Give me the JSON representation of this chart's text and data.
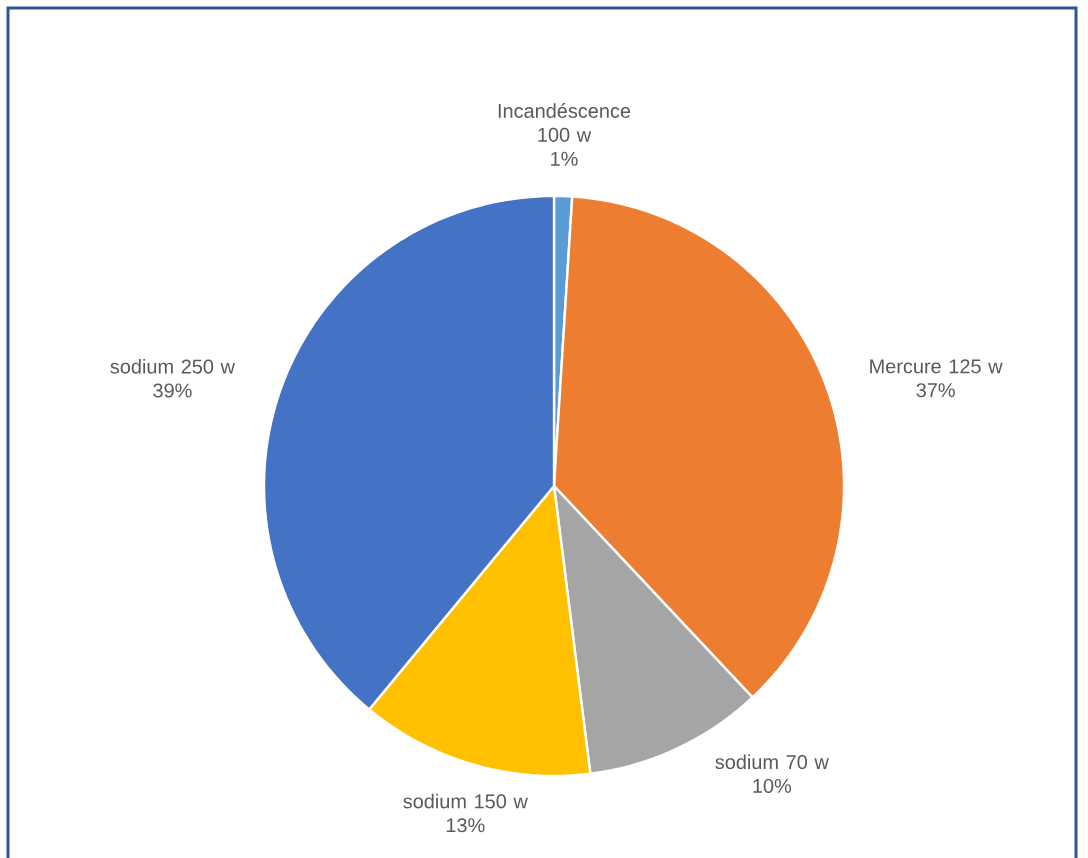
{
  "chart_data": {
    "type": "pie",
    "categories": [
      "Incandéscence 100 w",
      "Mercure 125 w",
      "sodium 70 w",
      "sodium 150 w",
      "sodium 250 w"
    ],
    "values": [
      1,
      37,
      10,
      13,
      39
    ],
    "colors": [
      "#5b9bd5",
      "#ed7d31",
      "#a5a5a5",
      "#ffc000",
      "#4472c4"
    ],
    "value_labels": [
      "1%",
      "37%",
      "10%",
      "13%",
      "39%"
    ]
  }
}
